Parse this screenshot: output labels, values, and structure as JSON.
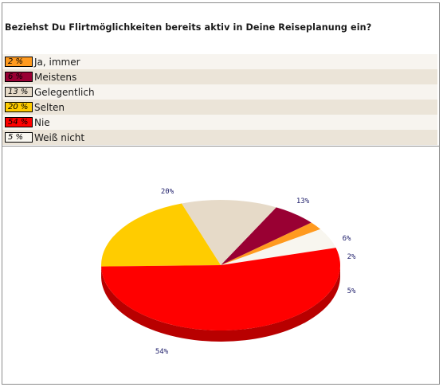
{
  "question": "Beziehst Du Flirtmöglichkeiten bereits aktiv in Deine Reiseplanung ein?",
  "chart_data": {
    "type": "pie",
    "title": "Beziehst Du Flirtmöglichkeiten bereits aktiv in Deine Reiseplanung ein?",
    "slices": [
      {
        "label": "Ja, immer",
        "value": 2,
        "pct_text": "2 %",
        "pie_label": "2%",
        "color": "#ff9a1f"
      },
      {
        "label": "Meistens",
        "value": 6,
        "pct_text": "6 %",
        "pie_label": "6%",
        "color": "#990033"
      },
      {
        "label": "Gelegentlich",
        "value": 13,
        "pct_text": "13 %",
        "pie_label": "13%",
        "color": "#e6dac8"
      },
      {
        "label": "Selten",
        "value": 20,
        "pct_text": "20 %",
        "pie_label": "20%",
        "color": "#ffcc00"
      },
      {
        "label": "Nie",
        "value": 54,
        "pct_text": "54 %",
        "pie_label": "54%",
        "color": "#ff0000"
      },
      {
        "label": "Weiß nicht",
        "value": 5,
        "pct_text": "5 %",
        "pie_label": "5%",
        "color": "#f8f6ef"
      }
    ]
  }
}
